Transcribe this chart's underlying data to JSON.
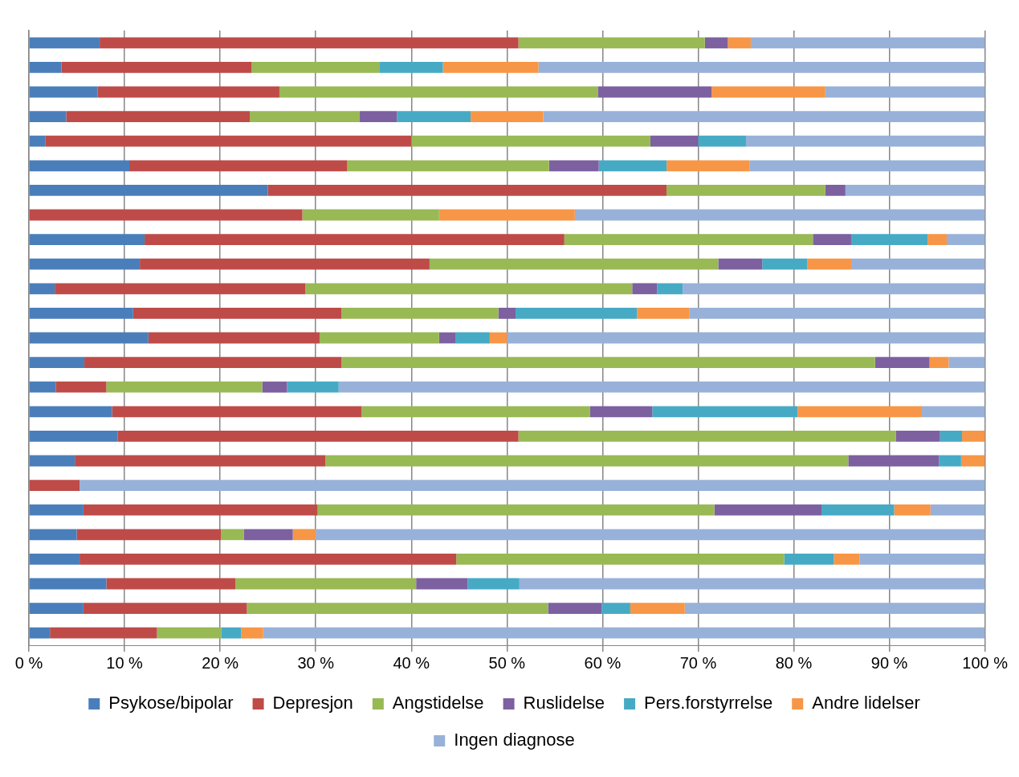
{
  "chart_data": {
    "type": "bar",
    "orientation": "horizontal",
    "stacked": true,
    "categories": [
      null,
      null,
      null,
      null,
      null,
      null,
      null,
      null,
      null,
      null,
      null,
      null,
      null,
      null,
      null,
      null,
      null,
      null,
      null,
      null,
      null,
      null,
      null,
      null,
      null
    ],
    "series": [
      {
        "name": "Psykose/bipolar",
        "color": "#4a7ebb",
        "values": [
          7.4,
          3.4,
          7.2,
          3.9,
          1.7,
          10.5,
          25.0,
          0,
          12.1,
          11.6,
          2.7,
          10.9,
          12.5,
          5.8,
          2.8,
          8.7,
          9.3,
          4.8,
          0,
          5.7,
          5.0,
          5.3,
          8.1,
          5.7,
          2.2
        ]
      },
      {
        "name": "Depresjon",
        "color": "#be4b48",
        "values": [
          43.8,
          19.9,
          19.0,
          19.2,
          38.3,
          22.8,
          41.7,
          28.6,
          43.9,
          30.3,
          26.2,
          21.8,
          17.9,
          26.9,
          5.3,
          26.1,
          41.9,
          26.2,
          5.3,
          24.5,
          15.1,
          39.4,
          13.5,
          17.1,
          11.2
        ]
      },
      {
        "name": "Angstidelse",
        "color": "#98b954",
        "values": [
          19.5,
          13.4,
          33.3,
          11.5,
          25.0,
          21.1,
          16.6,
          14.3,
          26.0,
          30.2,
          34.2,
          16.4,
          12.5,
          55.8,
          16.3,
          23.9,
          39.5,
          54.7,
          0,
          41.5,
          2.4,
          34.3,
          18.9,
          31.5,
          6.7
        ]
      },
      {
        "name": "Ruslidelse",
        "color": "#7d60a0",
        "values": [
          2.4,
          0,
          11.9,
          3.9,
          5.0,
          5.2,
          2.1,
          0,
          4.0,
          4.6,
          2.6,
          1.8,
          1.7,
          5.7,
          2.6,
          6.5,
          4.6,
          9.5,
          0,
          11.2,
          5.1,
          0,
          5.4,
          5.6,
          0
        ]
      },
      {
        "name": "Pers.forstyrrelse",
        "color": "#46aac5",
        "values": [
          0,
          6.6,
          0,
          7.7,
          5.0,
          7.1,
          0,
          0,
          8.0,
          4.7,
          2.7,
          12.7,
          3.6,
          0,
          5.4,
          15.2,
          2.3,
          2.3,
          0,
          7.6,
          0,
          5.2,
          5.4,
          3.0,
          2.1
        ]
      },
      {
        "name": "Andre lidelser",
        "color": "#f79646",
        "values": [
          2.4,
          10.0,
          11.9,
          7.6,
          0,
          8.7,
          0,
          14.2,
          2.0,
          4.6,
          0,
          5.5,
          1.8,
          2.0,
          0,
          13.0,
          2.4,
          2.5,
          0,
          3.8,
          2.4,
          2.7,
          0,
          5.7,
          2.3
        ]
      },
      {
        "name": "Ingen diagnose",
        "color": "#98b1d9",
        "values": [
          24.5,
          46.7,
          16.7,
          46.2,
          25.0,
          24.6,
          14.6,
          42.9,
          4.0,
          14.0,
          31.6,
          30.9,
          50.0,
          3.8,
          67.6,
          6.6,
          0,
          0,
          94.7,
          5.7,
          70.0,
          13.1,
          48.7,
          31.4,
          75.5
        ]
      }
    ],
    "xlim": [
      0,
      100
    ],
    "xticks": [
      {
        "value": 0,
        "label": "0 %"
      },
      {
        "value": 10,
        "label": "10 %"
      },
      {
        "value": 20,
        "label": "20 %"
      },
      {
        "value": 30,
        "label": "30 %"
      },
      {
        "value": 40,
        "label": "40 %"
      },
      {
        "value": 50,
        "label": "50 %"
      },
      {
        "value": 60,
        "label": "60 %"
      },
      {
        "value": 70,
        "label": "70 %"
      },
      {
        "value": 80,
        "label": "80 %"
      },
      {
        "value": 90,
        "label": "90 %"
      },
      {
        "value": 100,
        "label": "100 %"
      }
    ],
    "grid": "x",
    "legend": "bottom",
    "tick_labels": "x"
  }
}
